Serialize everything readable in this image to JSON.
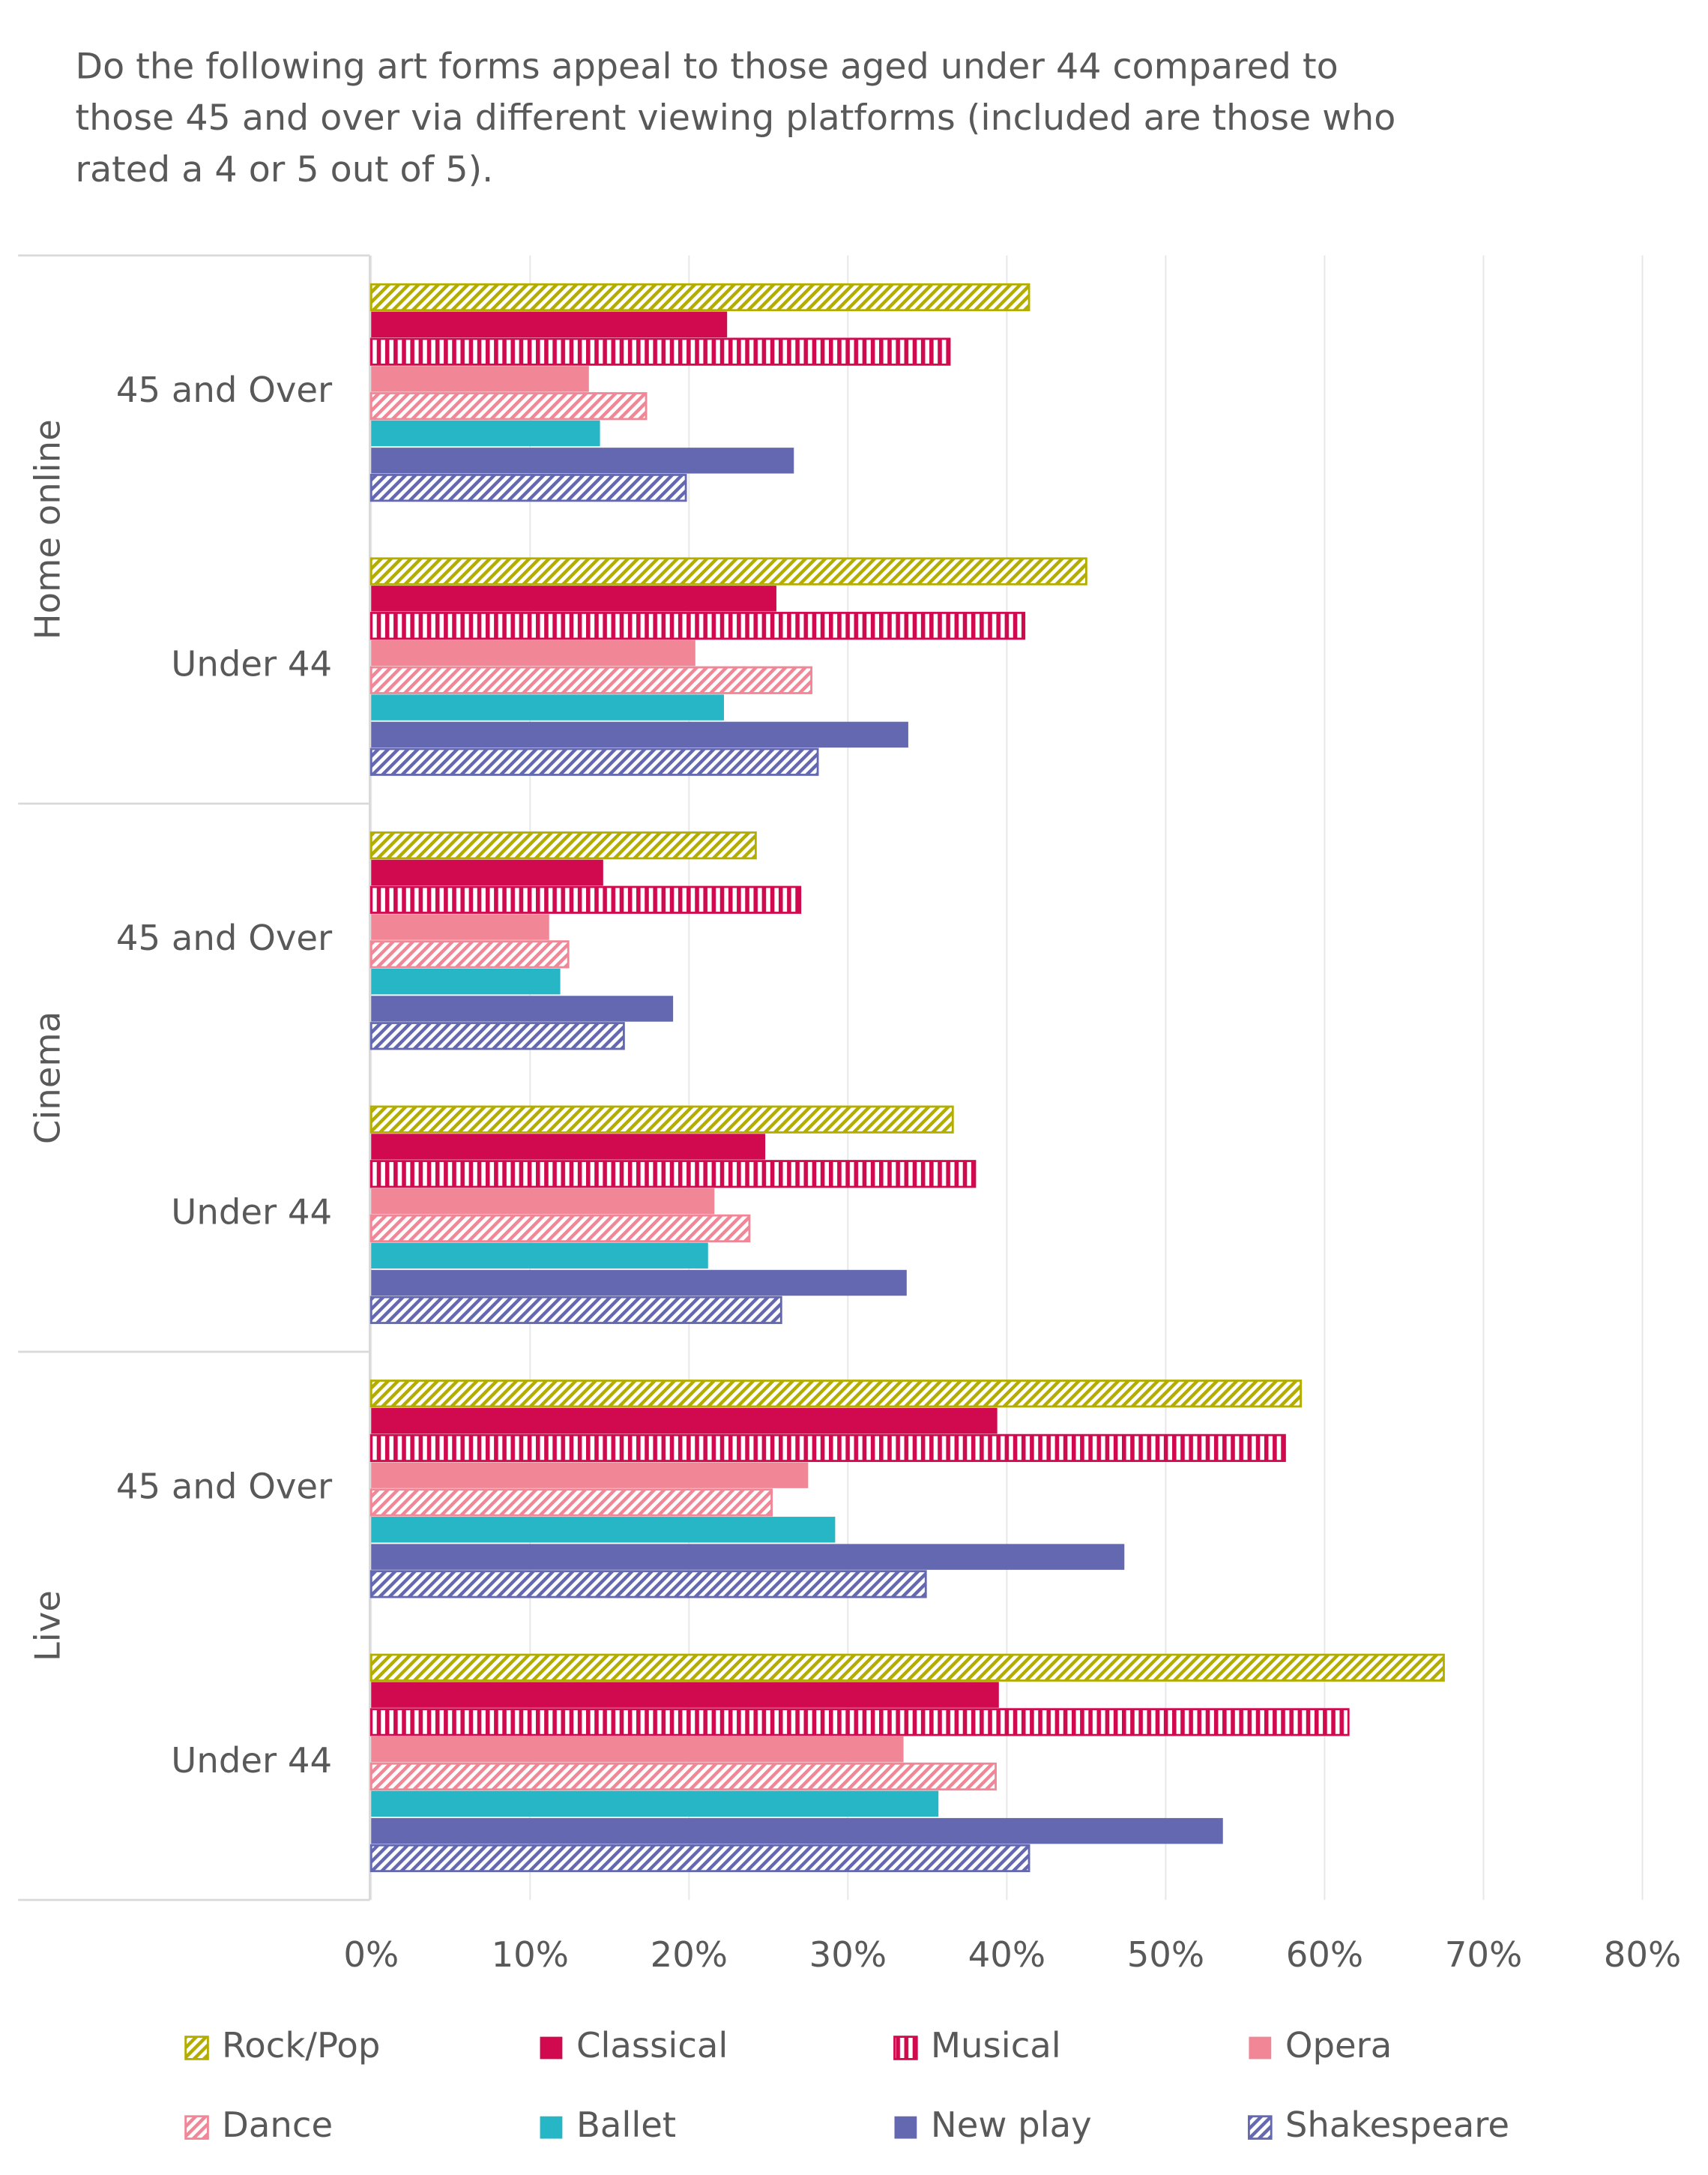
{
  "chart_data": {
    "type": "hbar",
    "title": "Do the following art forms appeal to those aged under 44 compared to those 45 and over via different viewing platforms (included are those who rated a 4 or 5 out of 5).",
    "group_labels": [
      "Home online",
      "Cinema",
      "Live"
    ],
    "categories": [
      "45 and Over",
      "Under 44",
      "45 and Over",
      "Under 44",
      "45 and Over",
      "Under 44"
    ],
    "series": [
      {
        "name": "Rock/Pop",
        "color": "#b3ad00",
        "pattern": "diagonal",
        "values": [
          41.4,
          45.0,
          24.2,
          36.6,
          58.5,
          67.5
        ]
      },
      {
        "name": "Classical",
        "color": "#d1094e",
        "pattern": "solid",
        "values": [
          22.4,
          25.5,
          14.6,
          24.8,
          39.4,
          39.5
        ]
      },
      {
        "name": "Musical",
        "color": "#d1094e",
        "pattern": "vertical",
        "values": [
          36.4,
          41.1,
          27.0,
          38.0,
          57.5,
          61.5
        ]
      },
      {
        "name": "Opera",
        "color": "#f08696",
        "pattern": "solid",
        "values": [
          13.7,
          20.4,
          11.2,
          21.6,
          27.5,
          33.5
        ]
      },
      {
        "name": "Dance",
        "color": "#f08696",
        "pattern": "diagonal",
        "values": [
          17.3,
          27.7,
          12.4,
          23.8,
          25.2,
          39.3
        ]
      },
      {
        "name": "Ballet",
        "color": "#27b6c6",
        "pattern": "solid",
        "values": [
          14.4,
          22.2,
          11.9,
          21.2,
          29.2,
          35.7
        ]
      },
      {
        "name": "New play",
        "color": "#6368b1",
        "pattern": "solid",
        "values": [
          26.6,
          33.8,
          19.0,
          33.7,
          47.4,
          53.6
        ]
      },
      {
        "name": "Shakespeare",
        "color": "#6368b1",
        "pattern": "diagonal",
        "values": [
          19.8,
          28.1,
          15.9,
          25.8,
          34.9,
          41.4
        ]
      }
    ],
    "xlim": [
      0,
      80
    ],
    "xticks": [
      {
        "value": 0,
        "label": "0%"
      },
      {
        "value": 10,
        "label": "10%"
      },
      {
        "value": 20,
        "label": "20%"
      },
      {
        "value": 30,
        "label": "30%"
      },
      {
        "value": 40,
        "label": "40%"
      },
      {
        "value": 50,
        "label": "50%"
      },
      {
        "value": 60,
        "label": "60%"
      },
      {
        "value": 70,
        "label": "70%"
      },
      {
        "value": 80,
        "label": "80%"
      }
    ],
    "grid": true,
    "legend": "bottom"
  }
}
